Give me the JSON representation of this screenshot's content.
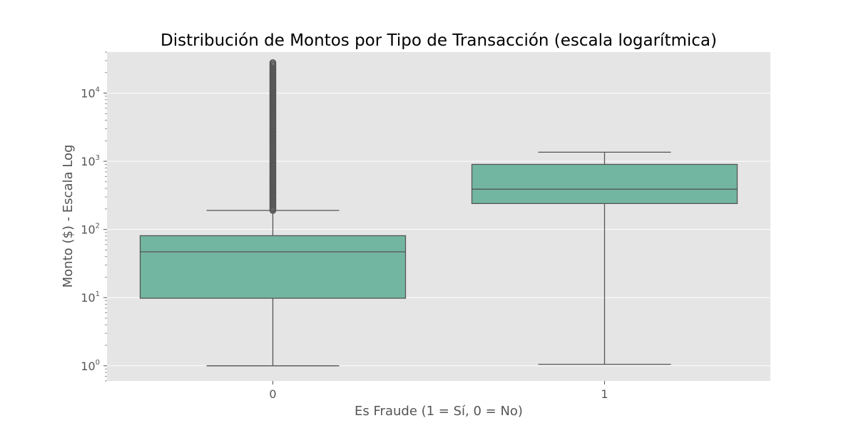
{
  "chart_data": {
    "type": "boxplot",
    "title": "Distribución de Montos por Tipo de Transacción (escala logarítmica)",
    "xlabel": "Es Fraude (1 = Sí, 0 = No)",
    "ylabel": "Monto ($) - Escala Log",
    "y_scale": "log",
    "ylim": [
      0.6,
      40000
    ],
    "y_ticks": [
      {
        "value": 1,
        "base": "10",
        "exp": "0"
      },
      {
        "value": 10,
        "base": "10",
        "exp": "1"
      },
      {
        "value": 100,
        "base": "10",
        "exp": "2"
      },
      {
        "value": 1000,
        "base": "10",
        "exp": "3"
      },
      {
        "value": 10000,
        "base": "10",
        "exp": "4"
      }
    ],
    "grid": true,
    "categories": [
      "0",
      "1"
    ],
    "boxes": [
      {
        "category": "0",
        "whisker_low": 1.0,
        "q1": 9.8,
        "median": 47,
        "q3": 81,
        "whisker_high": 190,
        "outliers_range": [
          190,
          28000
        ]
      },
      {
        "category": "1",
        "whisker_low": 1.05,
        "q1": 240,
        "median": 390,
        "q3": 900,
        "whisker_high": 1360,
        "outliers_range": null
      }
    ],
    "colors": {
      "box_fill": "#72b6a1",
      "box_edge": "#555555",
      "plot_bg": "#e5e5e5",
      "grid": "#ffffff"
    }
  }
}
